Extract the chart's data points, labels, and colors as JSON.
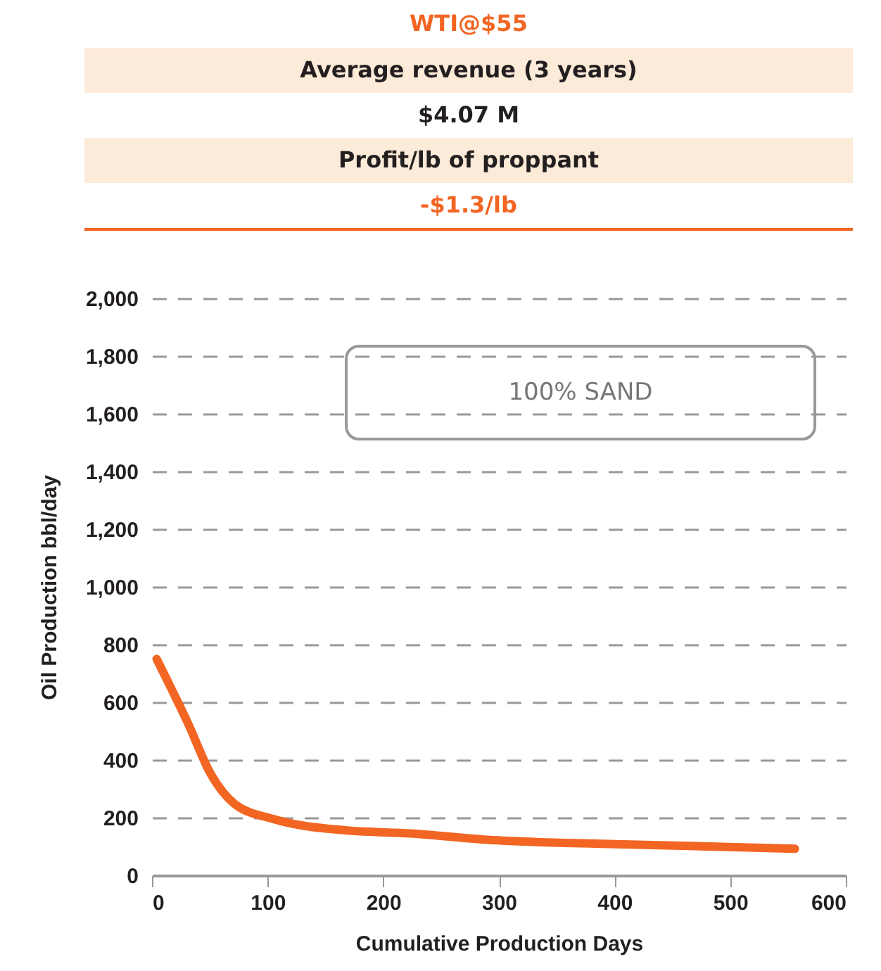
{
  "chart_data": {
    "type": "line",
    "title": "WTI@$55",
    "annotations": [
      "Average revenue (3 years)",
      "$4.07 M",
      "Profit/lb of proppant",
      "-$1.3/lb",
      "100% SAND"
    ],
    "xlabel": "Cumulative Production Days",
    "ylabel": "Oil Production bbl/day",
    "series": [
      {
        "color": "#f26522",
        "x": [
          4,
          31,
          51,
          72,
          105,
          167,
          224,
          290,
          389,
          471,
          556
        ],
        "values": [
          750,
          528,
          350,
          246,
          195,
          156,
          145,
          123,
          109,
          101,
          92
        ]
      }
    ],
    "xlim": [
      0,
      600
    ],
    "xticks": [
      0,
      100,
      200,
      300,
      400,
      500,
      600
    ],
    "ylim": [
      0,
      2000
    ],
    "yticks": [
      0,
      200,
      400,
      600,
      800,
      {
        "value": 1000,
        "label": "1,000"
      },
      {
        "value": 1200,
        "label": "1,200"
      },
      {
        "value": 1400,
        "label": "1,400"
      },
      {
        "value": 1600,
        "label": "1,600"
      },
      {
        "value": 1800,
        "label": "1,800"
      },
      {
        "value": 2000,
        "label": "2,000"
      }
    ],
    "grid": "y",
    "line_style": "solid",
    "marker": "none"
  }
}
